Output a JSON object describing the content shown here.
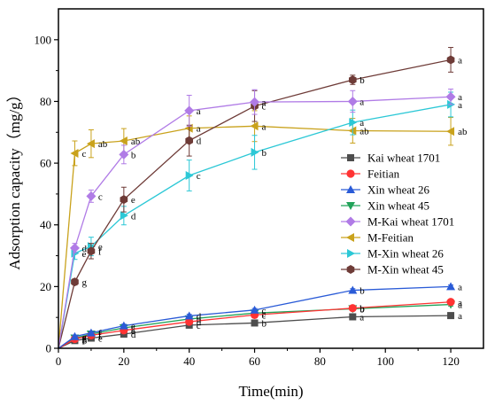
{
  "chart_data": {
    "type": "line",
    "xlabel": "Time(min)",
    "ylabel": "Adsorption capacity（mg/g）",
    "x": [
      5,
      10,
      20,
      40,
      60,
      90,
      120
    ],
    "xlim": [
      0,
      130
    ],
    "ylim": [
      0,
      110
    ],
    "x_ticks": [
      0,
      20,
      40,
      60,
      80,
      100,
      120
    ],
    "y_ticks": [
      0,
      20,
      40,
      60,
      80,
      100
    ],
    "grid": false,
    "legend_position": "center-right",
    "series": [
      {
        "name": "Kai wheat 1701",
        "color": "#4d4d4d",
        "marker": "square",
        "values": [
          2.5,
          3.3,
          4.6,
          7.5,
          8.2,
          10.2,
          10.6
        ],
        "errors": [
          0.6,
          0.5,
          0.5,
          0.5,
          0.5,
          0.5,
          0.6
        ],
        "labels": [
          "f",
          "e",
          "d",
          "c",
          "b",
          "a",
          "a"
        ]
      },
      {
        "name": "Feitian",
        "color": "#ff3333",
        "marker": "circle",
        "values": [
          3.0,
          4.2,
          5.8,
          8.6,
          10.8,
          13.0,
          15.0
        ],
        "errors": [
          0.5,
          0.5,
          0.5,
          0.5,
          0.5,
          0.6,
          0.6
        ],
        "labels": [
          "f",
          "f",
          "e",
          "d",
          "c",
          "b",
          "a"
        ]
      },
      {
        "name": "Xin wheat 26",
        "color": "#2a5bd7",
        "marker": "triangle-up",
        "values": [
          3.8,
          5.0,
          7.3,
          10.5,
          12.4,
          18.8,
          20.0
        ],
        "errors": [
          0.5,
          0.5,
          0.5,
          0.5,
          0.5,
          0.5,
          0.5
        ],
        "labels": [
          "g",
          "f",
          "e",
          "d",
          "c",
          "b",
          "a"
        ]
      },
      {
        "name": "Xin wheat 45",
        "color": "#22a35a",
        "marker": "triangle-down",
        "values": [
          3.3,
          4.6,
          6.6,
          9.5,
          11.4,
          12.8,
          14.2
        ],
        "errors": [
          0.5,
          0.5,
          0.5,
          0.5,
          0.5,
          0.5,
          0.5
        ],
        "labels": [
          "g",
          "f",
          "e",
          "d",
          "c",
          "b",
          "a"
        ]
      },
      {
        "name": "M-Kai wheat 1701",
        "color": "#b07be6",
        "marker": "diamond",
        "values": [
          32.5,
          49.3,
          62.8,
          77.0,
          79.8,
          80.0,
          81.5
        ],
        "errors": [
          1.5,
          2.0,
          3.0,
          5.0,
          4.0,
          3.5,
          2.5
        ],
        "labels": [
          "d",
          "c",
          "b",
          "a",
          "a",
          "a",
          "a"
        ]
      },
      {
        "name": "M-Feitian",
        "color": "#c9a21c",
        "marker": "triangle-left",
        "values": [
          63.2,
          66.3,
          67.2,
          71.3,
          72.0,
          70.5,
          70.3
        ],
        "errors": [
          4.0,
          4.5,
          4.0,
          4.0,
          5.0,
          4.0,
          4.5
        ],
        "labels": [
          "c",
          "ab",
          "ab",
          "a",
          "a",
          "ab",
          "ab"
        ]
      },
      {
        "name": "M-Xin wheat 26",
        "color": "#2cc8d6",
        "marker": "triangle-right",
        "values": [
          30.8,
          33.0,
          43.0,
          56.0,
          63.5,
          73.2,
          79.0
        ],
        "errors": [
          2.0,
          3.0,
          3.0,
          5.0,
          5.5,
          4.0,
          4.0
        ],
        "labels": [
          "e",
          "e",
          "d",
          "c",
          "b",
          "a",
          "a"
        ]
      },
      {
        "name": "M-Xin wheat 45",
        "color": "#6e3b37",
        "marker": "hexagon",
        "values": [
          21.5,
          31.5,
          48.2,
          67.3,
          78.5,
          87.0,
          93.5
        ],
        "errors": [
          1.0,
          2.5,
          4.0,
          5.0,
          5.0,
          1.5,
          4.0
        ],
        "labels": [
          "g",
          "f",
          "e",
          "d",
          "c",
          "b",
          "a"
        ]
      }
    ]
  }
}
